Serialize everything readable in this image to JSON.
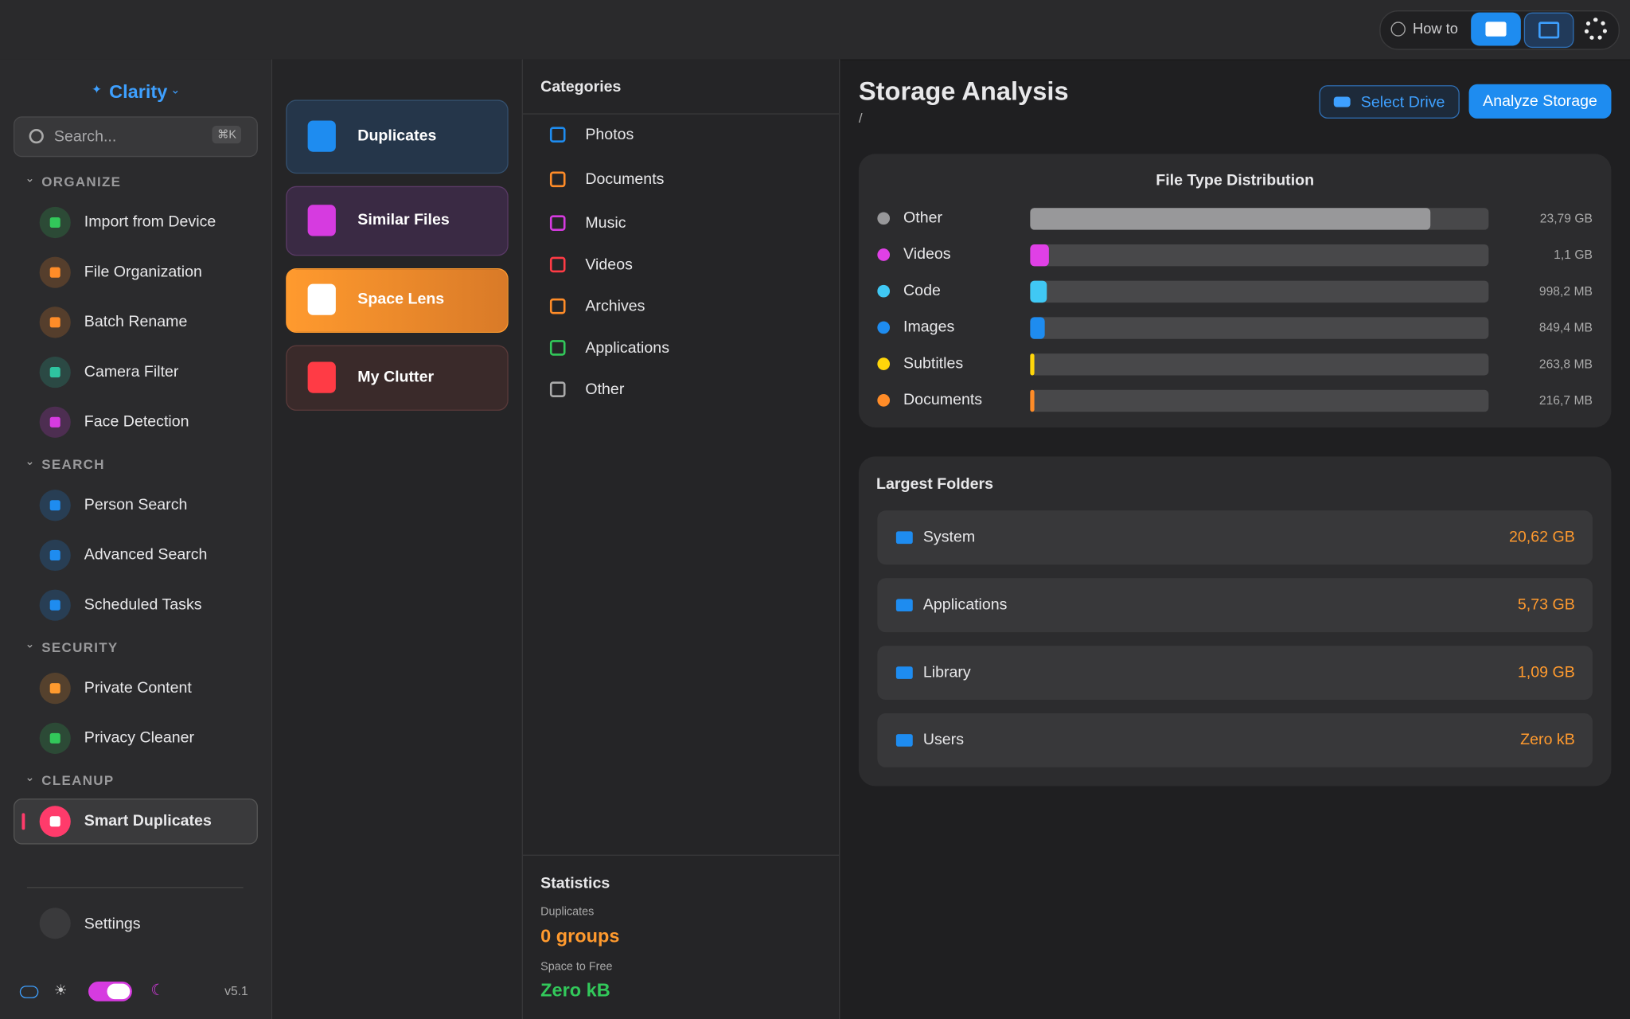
{
  "top_bar": {
    "how_to": "How to"
  },
  "sidebar": {
    "app_name": "Clarity",
    "search_placeholder": "Search...",
    "search_shortcut": "⌘K",
    "sections": [
      {
        "title": "ORGANIZE",
        "items": [
          "Import from Device",
          "File Organization",
          "Batch Rename",
          "Camera Filter",
          "Face Detection"
        ]
      },
      {
        "title": "SEARCH",
        "items": [
          "Person Search",
          "Advanced Search",
          "Scheduled Tasks"
        ]
      },
      {
        "title": "SECURITY",
        "items": [
          "Private Content",
          "Privacy Cleaner"
        ]
      },
      {
        "title": "CLEANUP",
        "items": [
          "Smart Duplicates"
        ]
      }
    ],
    "settings": "Settings",
    "version": "v5.1"
  },
  "tools": [
    "Duplicates",
    "Similar Files",
    "Space Lens",
    "My Clutter"
  ],
  "categories": {
    "title": "Categories",
    "items": [
      "Photos",
      "Documents",
      "Music",
      "Videos",
      "Archives",
      "Applications",
      "Other"
    ]
  },
  "statistics": {
    "title": "Statistics",
    "duplicates_label": "Duplicates",
    "duplicates_value": "0 groups",
    "space_label": "Space to Free",
    "space_value": "Zero kB"
  },
  "main": {
    "title": "Storage Analysis",
    "path": "/",
    "select_drive": "Select Drive",
    "analyze": "Analyze Storage",
    "distribution": {
      "title": "File Type Distribution",
      "items": [
        {
          "name": "Other",
          "color": "#98989a",
          "value": 23.79,
          "value_label": "23,79 GB"
        },
        {
          "name": "Videos",
          "color": "#e040e6",
          "value": 1.1,
          "value_label": "1,1 GB"
        },
        {
          "name": "Code",
          "color": "#40c8f4",
          "value": 0.9982,
          "value_label": "998,2 MB"
        },
        {
          "name": "Images",
          "color": "#1e8cf0",
          "value": 0.8494,
          "value_label": "849,4 MB"
        },
        {
          "name": "Subtitles",
          "color": "#ffd60a",
          "value": 0.2638,
          "value_label": "263,8 MB"
        },
        {
          "name": "Documents",
          "color": "#ff8c28",
          "value": 0.2167,
          "value_label": "216,7 MB"
        }
      ]
    },
    "largest_folders": {
      "title": "Largest Folders",
      "items": [
        {
          "name": "System",
          "size": "20,62 GB"
        },
        {
          "name": "Applications",
          "size": "5,73 GB"
        },
        {
          "name": "Library",
          "size": "1,09 GB"
        },
        {
          "name": "Users",
          "size": "Zero kB"
        }
      ]
    }
  }
}
